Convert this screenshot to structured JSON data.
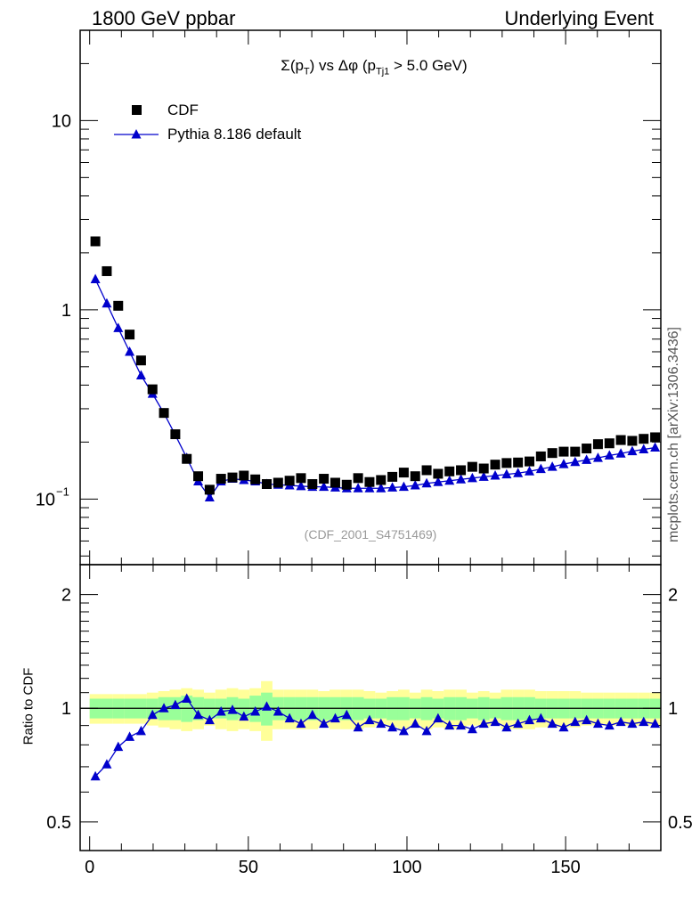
{
  "header": {
    "left": "1800 GeV ppbar",
    "right": "Underlying Event",
    "side": "mcplots.cern.ch [arXiv:1306.3436]",
    "watermark": "(CDF_2001_S4751469)"
  },
  "chart_data": [
    {
      "type": "scatter",
      "title_parts": {
        "pre": "Σ(p",
        "sub1": "T",
        "mid": ") vs Δφ (p",
        "sub2": "Tj1",
        "post": " > 5.0 GeV)"
      },
      "yscale": "log",
      "ylim": [
        0.045,
        30
      ],
      "xlim": [
        -3,
        180
      ],
      "y_tick_labels": [
        "10",
        "1",
        "10"
      ],
      "y_tick_sup": "−1",
      "legend": {
        "placement": "top-left",
        "entries": [
          "CDF",
          "Pythia 8.186 default"
        ]
      },
      "colors": {
        "cdf": "#000000",
        "pythia": "#0000cc"
      },
      "x": [
        1.8,
        5.4,
        9.0,
        12.6,
        16.2,
        19.8,
        23.4,
        27.0,
        30.6,
        34.2,
        37.8,
        41.4,
        45.0,
        48.6,
        52.2,
        55.8,
        59.4,
        63.0,
        66.6,
        70.2,
        73.8,
        77.4,
        81.0,
        84.6,
        88.2,
        91.8,
        95.4,
        99.0,
        102.6,
        106.2,
        109.8,
        113.4,
        117.0,
        120.6,
        124.2,
        127.8,
        131.4,
        135.0,
        138.6,
        142.2,
        145.8,
        149.4,
        153.0,
        156.6,
        160.2,
        163.8,
        167.4,
        171.0,
        174.6,
        178.2
      ],
      "series": [
        {
          "name": "CDF",
          "marker": "square",
          "values": [
            2.3,
            1.6,
            1.05,
            0.74,
            0.54,
            0.38,
            0.285,
            0.22,
            0.163,
            0.132,
            0.112,
            0.128,
            0.13,
            0.133,
            0.127,
            0.12,
            0.122,
            0.125,
            0.129,
            0.12,
            0.128,
            0.122,
            0.119,
            0.129,
            0.123,
            0.126,
            0.131,
            0.138,
            0.132,
            0.142,
            0.136,
            0.14,
            0.142,
            0.148,
            0.145,
            0.152,
            0.155,
            0.156,
            0.158,
            0.168,
            0.175,
            0.178,
            0.178,
            0.185,
            0.195,
            0.197,
            0.205,
            0.203,
            0.208,
            0.212
          ]
        },
        {
          "name": "Pythia 8.186 default",
          "marker": "triangle",
          "values": [
            1.45,
            1.08,
            0.8,
            0.6,
            0.45,
            0.36,
            0.284,
            0.218,
            0.165,
            0.124,
            0.102,
            0.124,
            0.128,
            0.126,
            0.124,
            0.12,
            0.119,
            0.118,
            0.117,
            0.116,
            0.116,
            0.115,
            0.114,
            0.114,
            0.114,
            0.114,
            0.115,
            0.116,
            0.118,
            0.121,
            0.123,
            0.125,
            0.127,
            0.129,
            0.131,
            0.133,
            0.135,
            0.137,
            0.14,
            0.144,
            0.148,
            0.153,
            0.157,
            0.161,
            0.165,
            0.17,
            0.174,
            0.179,
            0.183,
            0.187
          ]
        }
      ]
    },
    {
      "type": "scatter",
      "ylabel": "Ratio to CDF",
      "yscale": "log",
      "ylim": [
        0.42,
        2.4
      ],
      "xlim": [
        -3,
        180
      ],
      "y_tick_labels": [
        "2",
        "1",
        "0.5"
      ],
      "x_tick_labels": [
        "0",
        "50",
        "100",
        "150"
      ],
      "band_colors": {
        "inner": "#99ff99",
        "outer": "#ffff99"
      },
      "band_inner": [
        0.06,
        0.06,
        0.06,
        0.06,
        0.06,
        0.06,
        0.07,
        0.07,
        0.08,
        0.07,
        0.06,
        0.06,
        0.07,
        0.06,
        0.08,
        0.1,
        0.07,
        0.07,
        0.07,
        0.07,
        0.07,
        0.07,
        0.07,
        0.07,
        0.06,
        0.06,
        0.07,
        0.07,
        0.06,
        0.07,
        0.06,
        0.07,
        0.07,
        0.06,
        0.07,
        0.06,
        0.07,
        0.07,
        0.07,
        0.06,
        0.06,
        0.06,
        0.06,
        0.06,
        0.06,
        0.06,
        0.06,
        0.06,
        0.06,
        0.06
      ],
      "band_outer": [
        0.09,
        0.09,
        0.09,
        0.09,
        0.09,
        0.1,
        0.11,
        0.12,
        0.13,
        0.12,
        0.1,
        0.12,
        0.13,
        0.12,
        0.13,
        0.18,
        0.12,
        0.12,
        0.12,
        0.12,
        0.11,
        0.12,
        0.12,
        0.12,
        0.11,
        0.1,
        0.11,
        0.12,
        0.1,
        0.12,
        0.11,
        0.12,
        0.12,
        0.1,
        0.11,
        0.1,
        0.12,
        0.12,
        0.12,
        0.11,
        0.11,
        0.11,
        0.11,
        0.1,
        0.1,
        0.1,
        0.1,
        0.1,
        0.1,
        0.1
      ],
      "series": [
        {
          "name": "Pythia 8.186 default",
          "values": [
            0.66,
            0.71,
            0.79,
            0.84,
            0.87,
            0.96,
            1.0,
            1.02,
            1.06,
            0.96,
            0.93,
            0.98,
            0.99,
            0.95,
            0.98,
            1.01,
            0.98,
            0.94,
            0.91,
            0.96,
            0.91,
            0.94,
            0.96,
            0.89,
            0.93,
            0.91,
            0.89,
            0.87,
            0.91,
            0.87,
            0.94,
            0.9,
            0.9,
            0.88,
            0.91,
            0.92,
            0.89,
            0.91,
            0.93,
            0.94,
            0.91,
            0.89,
            0.92,
            0.93,
            0.91,
            0.9,
            0.92,
            0.91,
            0.92,
            0.91
          ]
        }
      ]
    }
  ]
}
